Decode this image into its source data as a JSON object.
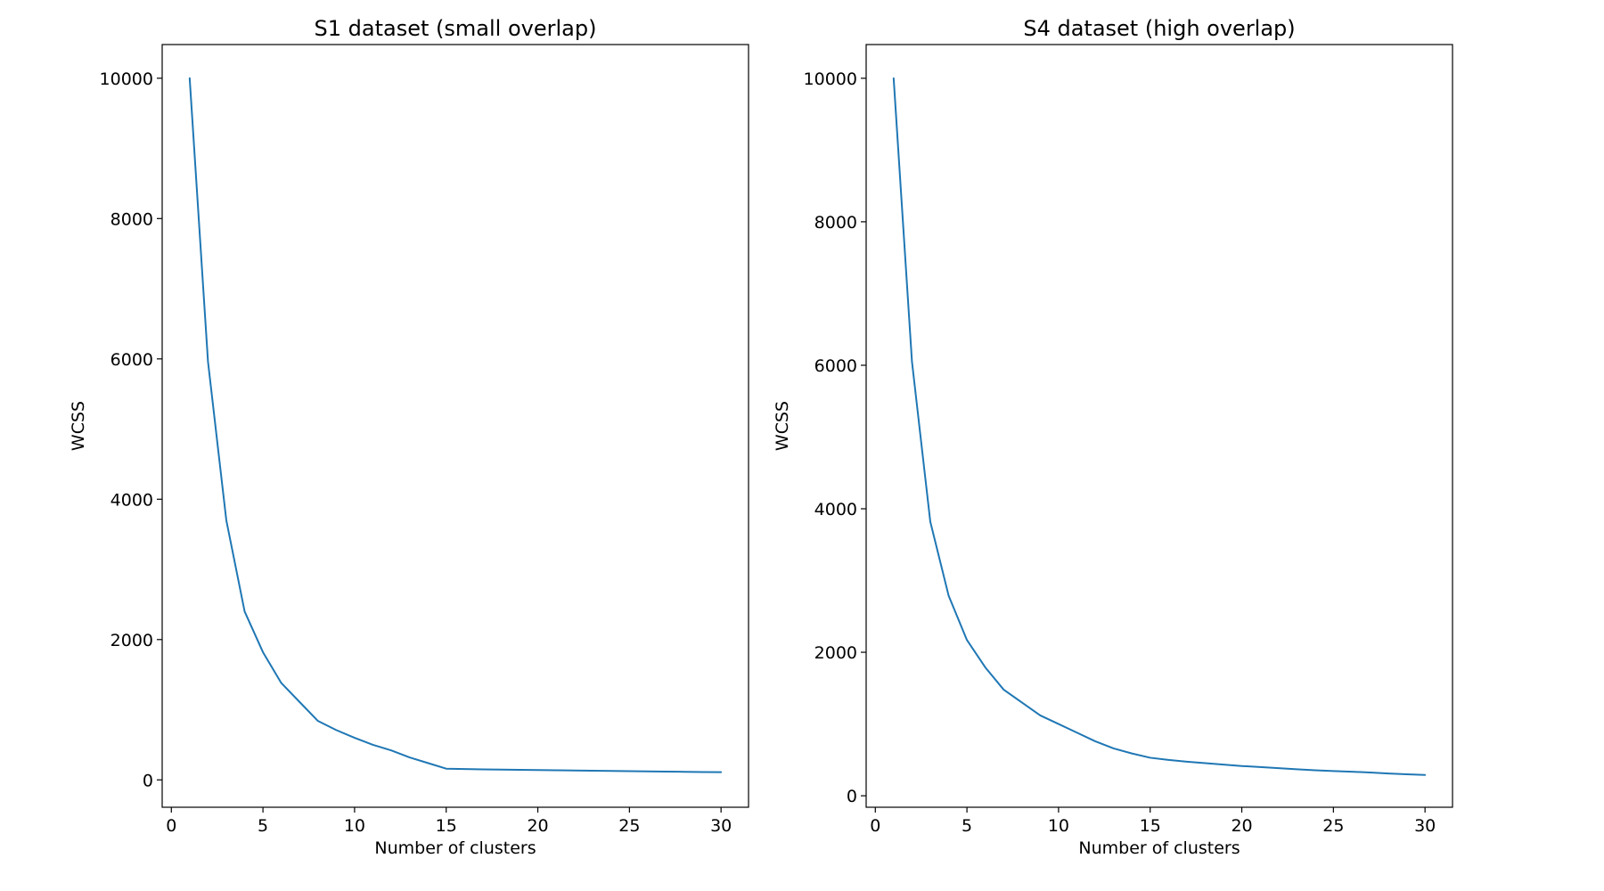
{
  "chart_data": [
    {
      "type": "line",
      "title": "S1 dataset (small overlap)",
      "xlabel": "Number of clusters",
      "ylabel": "WCSS",
      "xlim": [
        -0.5,
        31.5
      ],
      "ylim": [
        -390,
        10480
      ],
      "xticks": [
        0,
        5,
        10,
        15,
        20,
        25,
        30
      ],
      "yticks": [
        0,
        2000,
        4000,
        6000,
        8000,
        10000
      ],
      "grid": false,
      "color": "#1f77b4",
      "series": [
        {
          "x": [
            1,
            2,
            3,
            4,
            5,
            6,
            7,
            8,
            9,
            10,
            11,
            12,
            13,
            14,
            15,
            16,
            17,
            18,
            19,
            20,
            21,
            22,
            23,
            24,
            25,
            26,
            27,
            28,
            29,
            30
          ],
          "values": [
            10000,
            5960,
            3700,
            2400,
            1820,
            1380,
            1110,
            840,
            710,
            600,
            500,
            420,
            320,
            240,
            160,
            155,
            150,
            147,
            144,
            140,
            137,
            133,
            130,
            127,
            124,
            121,
            118,
            115,
            112,
            110
          ]
        }
      ]
    },
    {
      "type": "line",
      "title": "S4 dataset (high overlap)",
      "xlabel": "Number of clusters",
      "ylabel": "WCSS",
      "xlim": [
        -0.5,
        31.5
      ],
      "ylim": [
        -160,
        10470
      ],
      "xticks": [
        0,
        5,
        10,
        15,
        20,
        25,
        30
      ],
      "yticks": [
        0,
        2000,
        4000,
        6000,
        8000,
        10000
      ],
      "grid": false,
      "color": "#1f77b4",
      "series": [
        {
          "x": [
            1,
            2,
            3,
            4,
            5,
            6,
            7,
            8,
            9,
            10,
            11,
            12,
            13,
            14,
            15,
            16,
            17,
            18,
            19,
            20,
            21,
            22,
            23,
            24,
            25,
            26,
            27,
            28,
            29,
            30
          ],
          "values": [
            10000,
            6050,
            3820,
            2790,
            2170,
            1790,
            1480,
            1300,
            1120,
            1000,
            880,
            760,
            660,
            590,
            530,
            500,
            475,
            455,
            435,
            415,
            400,
            385,
            370,
            355,
            345,
            335,
            325,
            310,
            300,
            290
          ]
        }
      ]
    }
  ]
}
